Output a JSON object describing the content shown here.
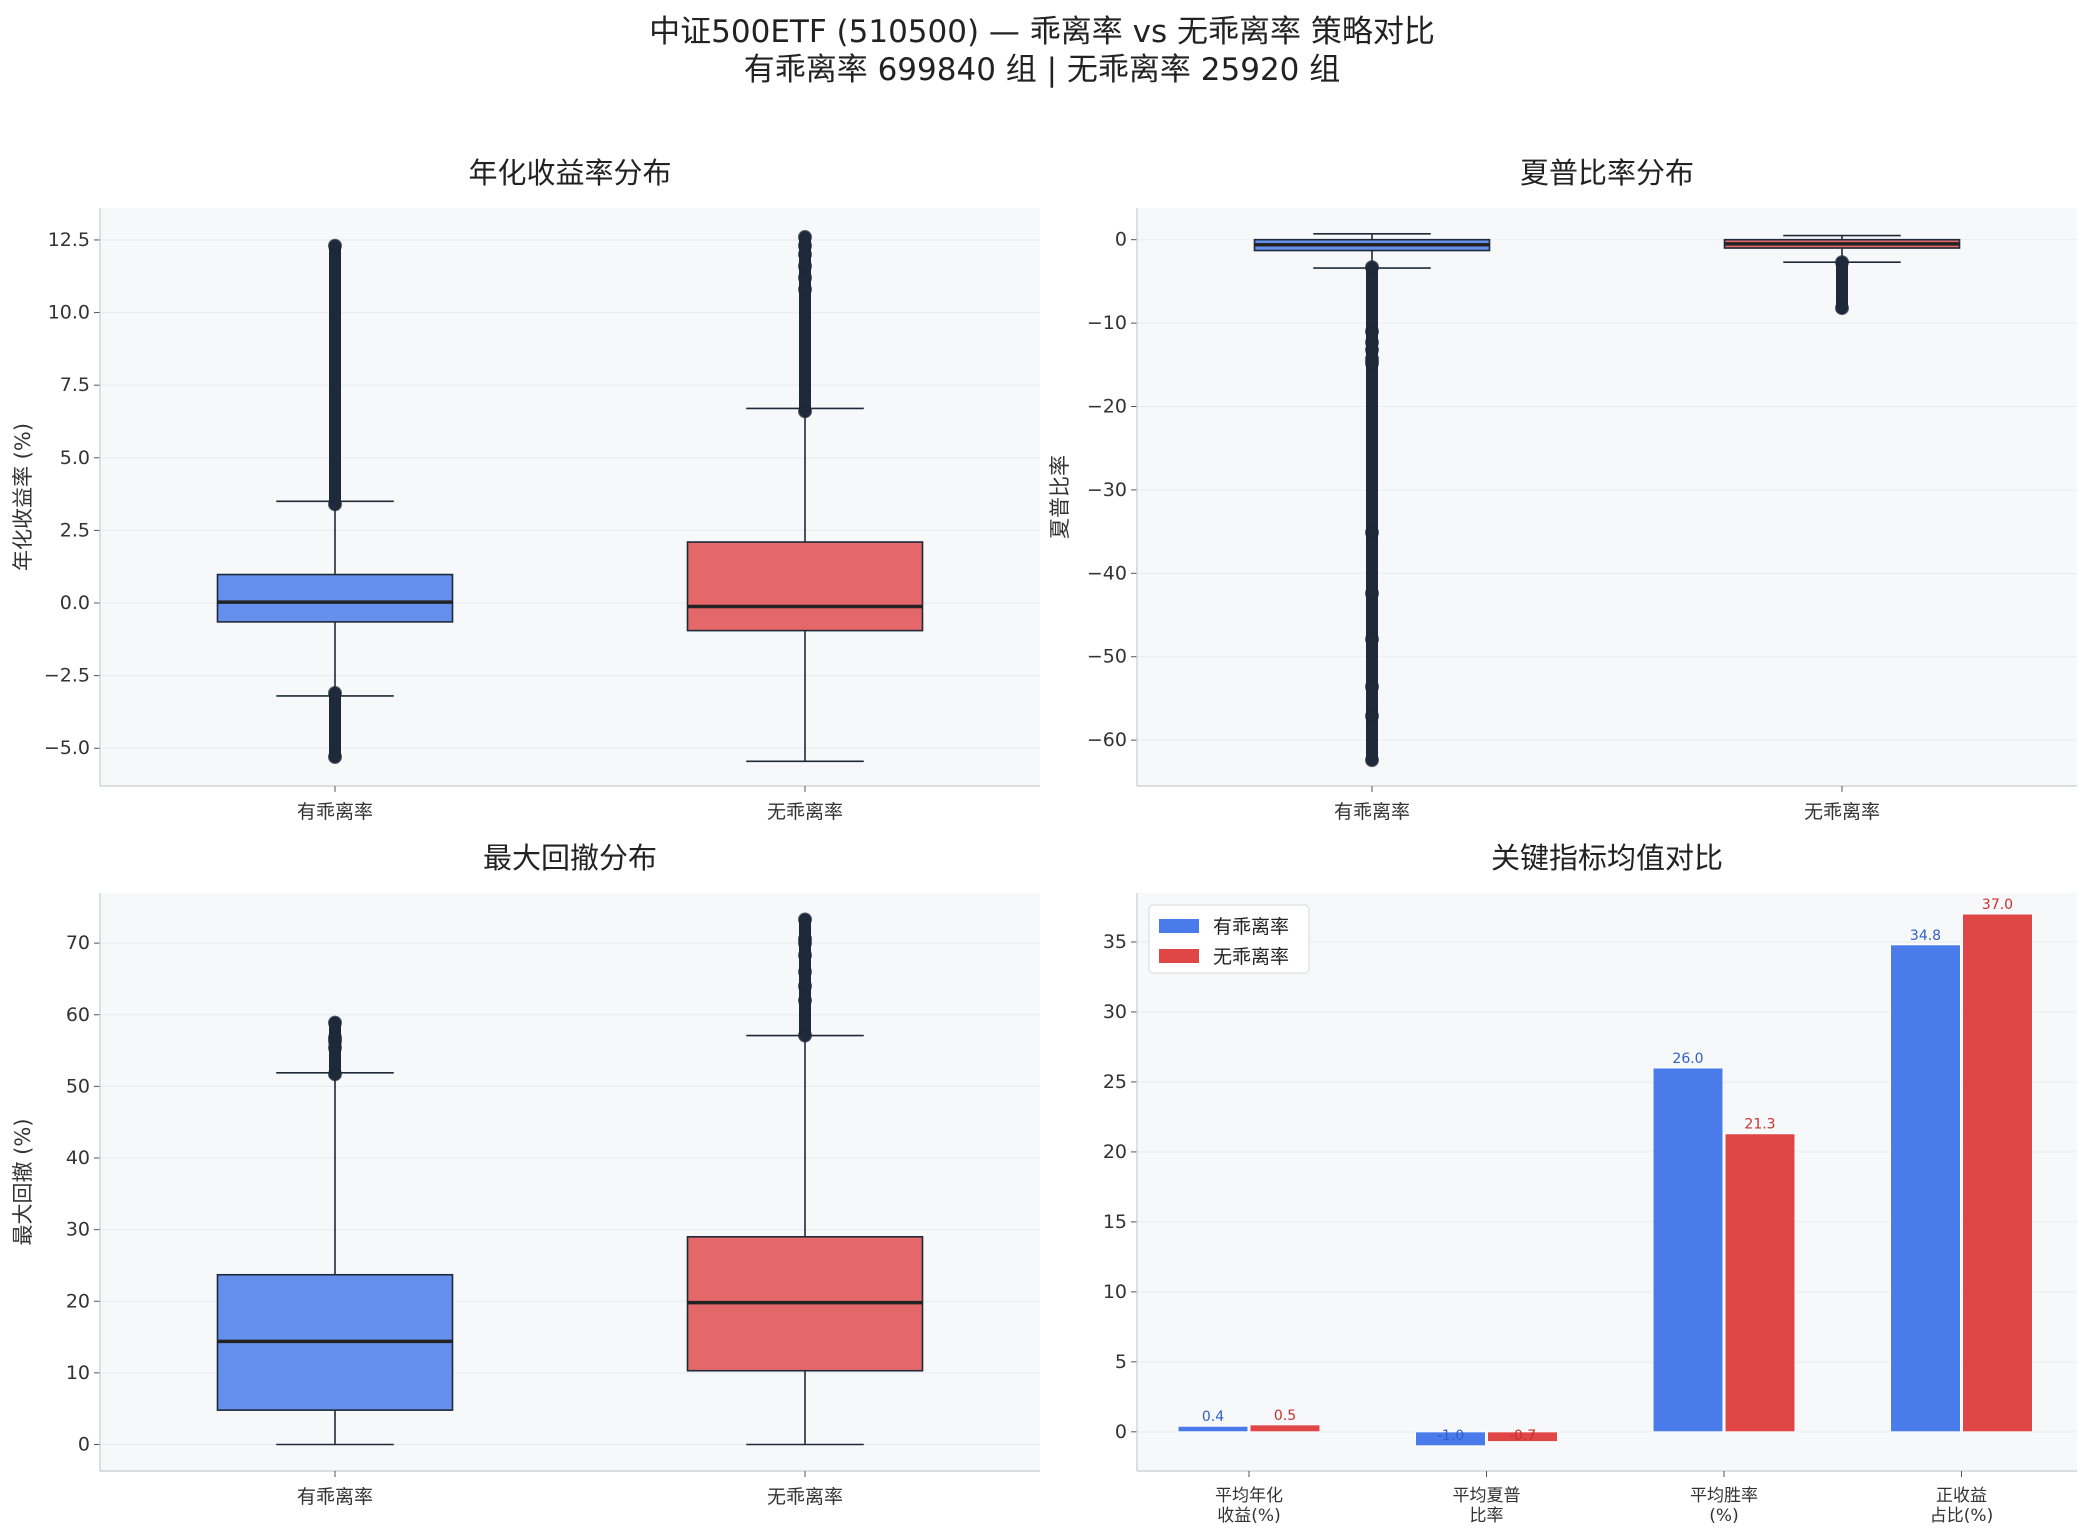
{
  "figure": {
    "title_line1": "中证500ETF (510500) — 乖离率 vs 无乖离率 策略对比",
    "title_line2": "有乖离率 699840 组  |  无乖离率 25920 组"
  },
  "colors": {
    "with_bias": "#4A7BEB",
    "without_bias": "#E04646",
    "panel_bg": "#F7F8FA",
    "dark": "#1E2A3A"
  },
  "chart_data": [
    {
      "type": "box",
      "title": "年化收益率分布",
      "ylabel": "年化收益率 (%)",
      "ylim": [
        -6.3,
        13.6
      ],
      "yticks": [
        -5.0,
        -2.5,
        0.0,
        2.5,
        5.0,
        7.5,
        10.0,
        12.5
      ],
      "ytick_labels": [
        "−5.0",
        "−2.5",
        "0.0",
        "2.5",
        "5.0",
        "7.5",
        "10.0",
        "12.5"
      ],
      "categories": [
        "有乖离率",
        "无乖离率"
      ],
      "boxes": [
        {
          "q1": -0.65,
          "median": 0.03,
          "q3": 0.98,
          "whisker_low": -3.2,
          "whisker_high": 3.5,
          "outliers_low": [
            -3.1,
            -5.3
          ],
          "outliers_high": [
            3.4,
            12.3
          ]
        },
        {
          "q1": -0.95,
          "median": -0.12,
          "q3": 2.1,
          "whisker_low": -5.45,
          "whisker_high": 6.7,
          "outliers_low": [],
          "outliers_high": [
            6.6,
            10.8,
            11.2,
            11.6,
            12.0,
            12.3,
            12.6
          ]
        }
      ]
    },
    {
      "type": "box",
      "title": "夏普比率分布",
      "ylabel": "夏普比率",
      "ylim": [
        -65.5,
        3.8
      ],
      "yticks": [
        -60,
        -50,
        -40,
        -30,
        -20,
        -10,
        0
      ],
      "ytick_labels": [
        "−60",
        "−50",
        "−40",
        "−30",
        "−20",
        "−10",
        "0"
      ],
      "categories": [
        "有乖离率",
        "无乖离率"
      ],
      "boxes": [
        {
          "q1": -1.3,
          "median": -0.6,
          "q3": 0.0,
          "whisker_low": -3.4,
          "whisker_high": 0.7,
          "outliers_low": [
            -3.3,
            -11.0,
            -12.3,
            -13.2,
            -14.3,
            -14.8,
            -35.1,
            -42.4,
            -47.9,
            -53.6,
            -57.1,
            -62.4
          ],
          "outliers_high": []
        },
        {
          "q1": -1.0,
          "median": -0.5,
          "q3": 0.0,
          "whisker_low": -2.7,
          "whisker_high": 0.5,
          "outliers_low": [
            -2.7,
            -8.2
          ],
          "outliers_high": []
        }
      ]
    },
    {
      "type": "box",
      "title": "最大回撤分布",
      "ylabel": "最大回撤 (%)",
      "ylim": [
        -3.7,
        77.0
      ],
      "yticks": [
        0,
        10,
        20,
        30,
        40,
        50,
        60,
        70
      ],
      "ytick_labels": [
        "0",
        "10",
        "20",
        "30",
        "40",
        "50",
        "60",
        "70"
      ],
      "categories": [
        "有乖离率",
        "无乖离率"
      ],
      "boxes": [
        {
          "q1": 4.8,
          "median": 14.4,
          "q3": 23.7,
          "whisker_low": 0.0,
          "whisker_high": 51.9,
          "outliers_low": [],
          "outliers_high": [
            51.7,
            55.4,
            56.3,
            56.8,
            58.9
          ]
        },
        {
          "q1": 10.3,
          "median": 19.8,
          "q3": 29.0,
          "whisker_low": 0.0,
          "whisker_high": 57.1,
          "outliers_low": [],
          "outliers_high": [
            57.1,
            62.0,
            64.0,
            66.0,
            68.3,
            70.0,
            70.6,
            73.3
          ]
        }
      ]
    },
    {
      "type": "bar",
      "title": "关键指标均值对比",
      "ylim": [
        -2.8,
        38.5
      ],
      "yticks": [
        0,
        5,
        10,
        15,
        20,
        25,
        30,
        35
      ],
      "ytick_labels": [
        "0",
        "5",
        "10",
        "15",
        "20",
        "25",
        "30",
        "35"
      ],
      "categories": [
        [
          "平均年化",
          "收益(%)"
        ],
        [
          "平均夏普",
          "比率"
        ],
        [
          "平均胜率",
          "(%)"
        ],
        [
          "正收益",
          "占比(%)"
        ]
      ],
      "legend_position": "upper-left",
      "series": [
        {
          "name": "有乖离率",
          "values": [
            0.4,
            -1.0,
            26.0,
            34.8
          ],
          "labels": [
            "0.4",
            "-1.0",
            "26.0",
            "34.8"
          ]
        },
        {
          "name": "无乖离率",
          "values": [
            0.5,
            -0.7,
            21.3,
            37.0
          ],
          "labels": [
            "0.5",
            "-0.7",
            "21.3",
            "37.0"
          ]
        }
      ]
    }
  ]
}
